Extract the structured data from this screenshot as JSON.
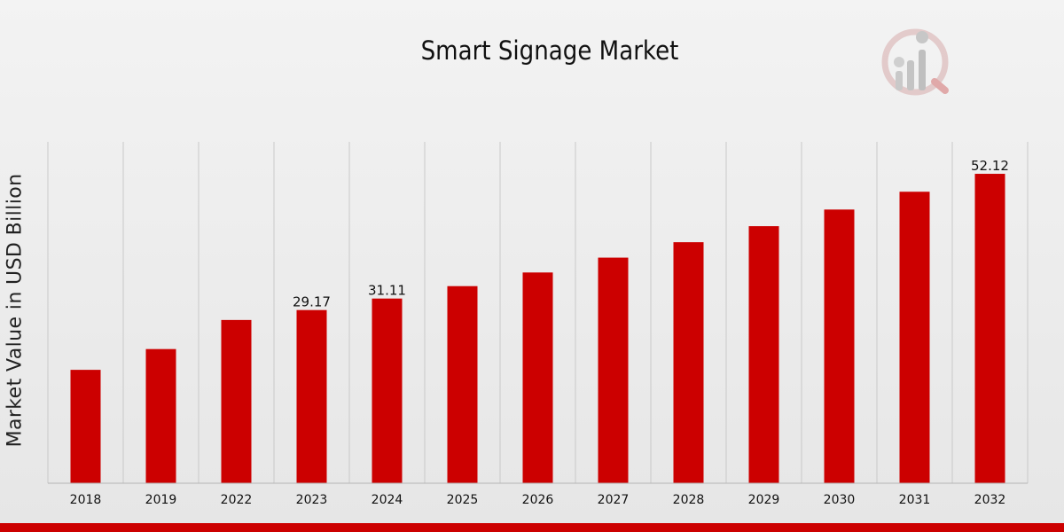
{
  "chart_data": {
    "type": "bar",
    "title": "Smart Signage Market",
    "xlabel": "",
    "ylabel": "Market Value in USD Billion",
    "categories": [
      "2018",
      "2019",
      "2022",
      "2023",
      "2024",
      "2025",
      "2026",
      "2027",
      "2028",
      "2029",
      "2030",
      "2031",
      "2032"
    ],
    "values": [
      19.1,
      22.6,
      27.5,
      29.17,
      31.11,
      33.2,
      35.5,
      38.0,
      40.6,
      43.3,
      46.1,
      49.1,
      52.12
    ],
    "data_labels": {
      "3": "29.17",
      "4": "31.11",
      "12": "52.12"
    },
    "ylim": [
      0,
      57.5
    ],
    "grid": "vertical",
    "legend": "none",
    "bar_color": "#cc0000"
  }
}
